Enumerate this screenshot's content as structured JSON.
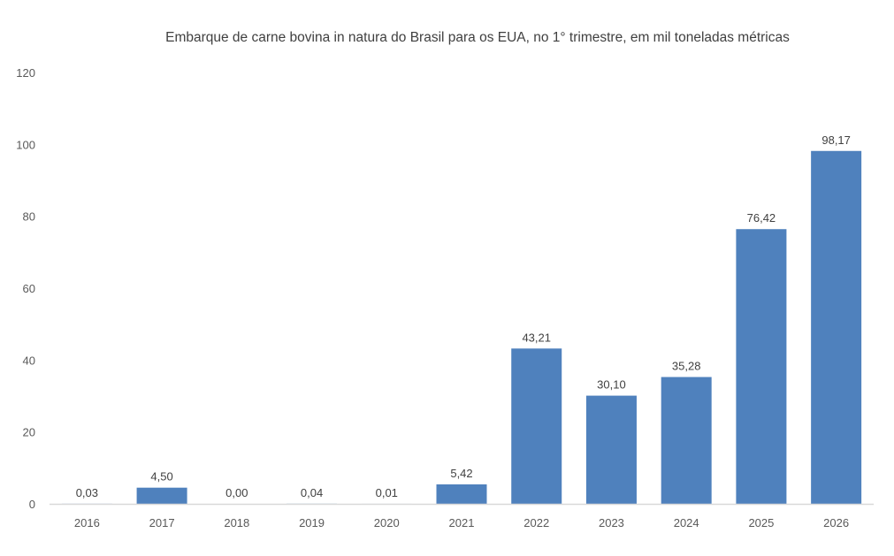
{
  "chart_data": {
    "type": "bar",
    "title": "Embarque de carne bovina in natura do Brasil para os EUA, no 1° trimestre, em mil toneladas métricas",
    "categories": [
      "2016",
      "2017",
      "2018",
      "2019",
      "2020",
      "2021",
      "2022",
      "2023",
      "2024",
      "2025",
      "2026"
    ],
    "values": [
      0.03,
      4.5,
      0.0,
      0.04,
      0.01,
      5.42,
      43.21,
      30.1,
      35.28,
      76.42,
      98.17
    ],
    "data_labels": [
      "0,03",
      "4,50",
      "0,00",
      "0,04",
      "0,01",
      "5,42",
      "43,21",
      "30,10",
      "35,28",
      "76,42",
      "98,17"
    ],
    "xlabel": "",
    "ylabel": "",
    "ylim": [
      0,
      120
    ],
    "yticks": [
      0,
      20,
      40,
      60,
      80,
      100,
      120
    ],
    "grid": false,
    "legend": "none",
    "bar_color": "#4F81BD",
    "axis_color": "#D9D9D9"
  }
}
